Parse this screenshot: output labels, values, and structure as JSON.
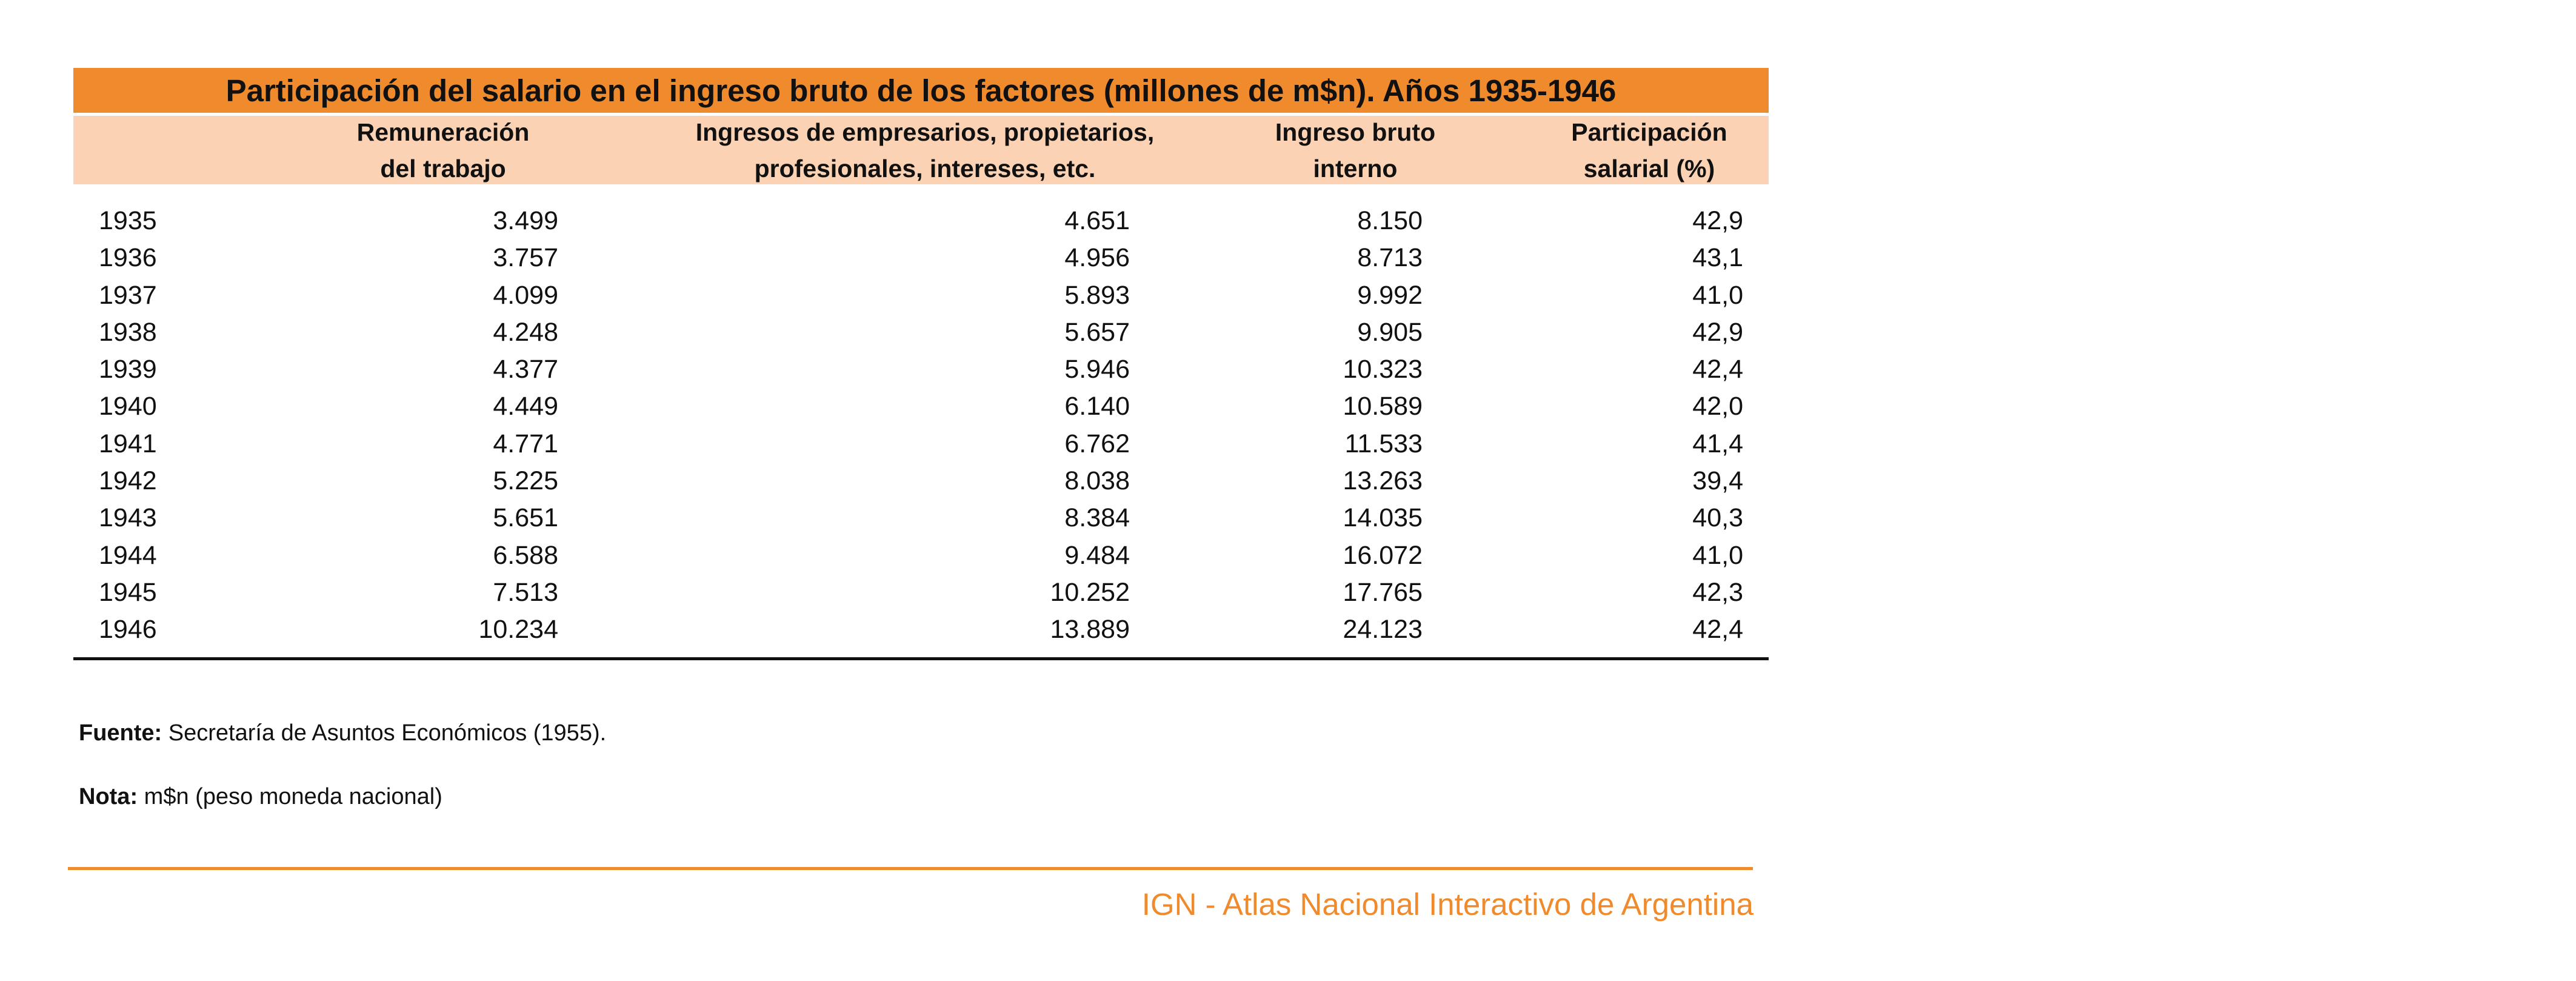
{
  "table": {
    "title": "Participación del salario en el ingreso bruto de los factores (millones de m$n). Años 1935-1946",
    "headers": [
      "",
      "Remuneración\ndel trabajo",
      "Ingresos de empresarios, propietarios,\nprofesionales, intereses, etc.",
      "Ingreso bruto\ninterno",
      "Participación\nsalarial (%)"
    ],
    "rows": [
      [
        "1935",
        "3.499",
        "4.651",
        "8.150",
        "42,9"
      ],
      [
        "1936",
        "3.757",
        "4.956",
        "8.713",
        "43,1"
      ],
      [
        "1937",
        "4.099",
        "5.893",
        "9.992",
        "41,0"
      ],
      [
        "1938",
        "4.248",
        "5.657",
        "9.905",
        "42,9"
      ],
      [
        "1939",
        "4.377",
        "5.946",
        "10.323",
        "42,4"
      ],
      [
        "1940",
        "4.449",
        "6.140",
        "10.589",
        "42,0"
      ],
      [
        "1941",
        "4.771",
        "6.762",
        "11.533",
        "41,4"
      ],
      [
        "1942",
        "5.225",
        "8.038",
        "13.263",
        "39,4"
      ],
      [
        "1943",
        "5.651",
        "8.384",
        "14.035",
        "40,3"
      ],
      [
        "1944",
        "6.588",
        "9.484",
        "16.072",
        "41,0"
      ],
      [
        "1945",
        "7.513",
        "10.252",
        "17.765",
        "42,3"
      ],
      [
        "1946",
        "10.234",
        "13.889",
        "24.123",
        "42,4"
      ]
    ]
  },
  "source": {
    "label": "Fuente:",
    "text": " Secretaría de Asuntos Económicos (1955)."
  },
  "note": {
    "label": "Nota:",
    "text": " m$n (peso moneda nacional)"
  },
  "footer": {
    "text": "IGN - Atlas Nacional Interactivo de Argentina"
  },
  "colors": {
    "accent": "#ef8a2d",
    "header_bg": "#fbd3b4"
  }
}
